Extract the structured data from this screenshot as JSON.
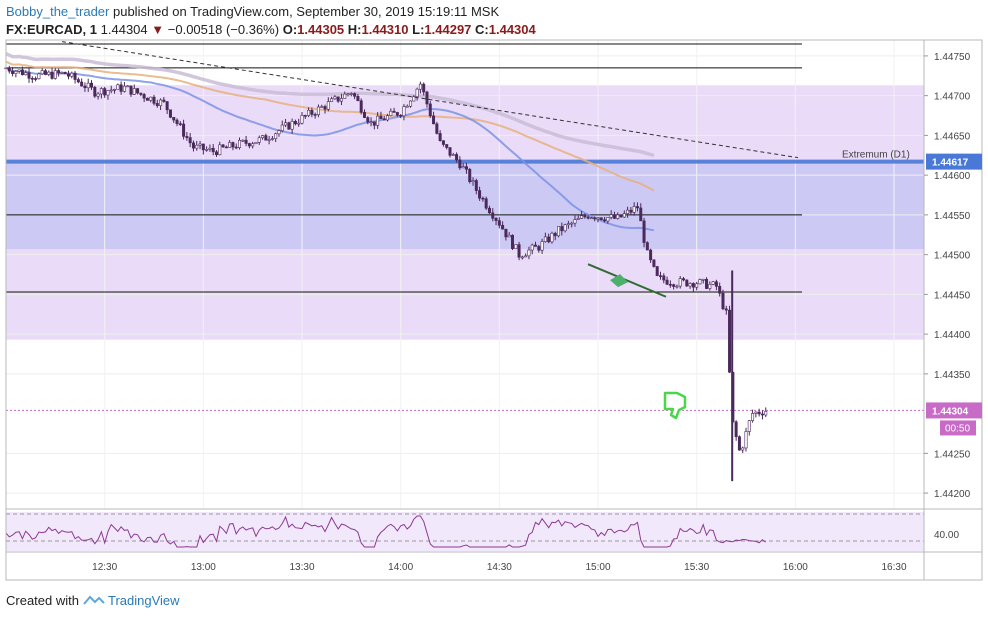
{
  "header": {
    "user": "Bobby_the_trader",
    "published": "published on TradingView.com, September 30, 2019 15:19:11 MSK",
    "symbol": "FX:EURCAD, 1",
    "price": "1.44304",
    "arrow": "▼",
    "change": "−0.00518 (−0.36%)",
    "o_label": "O:",
    "o": "1.44305",
    "h_label": "H:",
    "h": "1.44310",
    "l_label": "L:",
    "l": "1.44297",
    "c_label": "C:",
    "c": "1.44304"
  },
  "footer": {
    "created": "Created with",
    "brand": "TradingView"
  },
  "colors": {
    "candle": "#4a2a5a",
    "zone": "#e6d5f7",
    "blue_zone": "#c8c6f5",
    "level": "#4a78d6",
    "ma_blue": "#7b93e4",
    "ma_orange": "#e6b07c",
    "ma_grey": "#c9bcd6",
    "rsi": "#8a3a92",
    "price_tag": "#c76bc7",
    "thumb": "#4bd64b"
  },
  "chart_data": {
    "type": "candlestick",
    "x_ticks": [
      "12:30",
      "13:00",
      "13:30",
      "14:00",
      "14:30",
      "15:00",
      "15:30",
      "16:00",
      "16:30"
    ],
    "y_ticks": [
      "1.44750",
      "1.44700",
      "1.44650",
      "1.44600",
      "1.44550",
      "1.44500",
      "1.44450",
      "1.44400",
      "1.44350",
      "1.44250",
      "1.44200"
    ],
    "ylim": [
      1.4418,
      1.4477
    ],
    "horizontal_levels": [
      1.44765,
      1.44735,
      1.4455,
      1.44453
    ],
    "extremum": {
      "label": "Extremum (D1)",
      "value": "1.44617"
    },
    "current_price": {
      "value": "1.44304",
      "countdown": "00:50"
    },
    "zones": [
      {
        "from": 1.44393,
        "to": 1.44713,
        "color": "lavender"
      },
      {
        "from": 1.44507,
        "to": 1.44617,
        "color": "blue"
      }
    ],
    "rsi": {
      "level_label": "40.00",
      "upper_dashed": 60,
      "lower_dashed": 40
    },
    "price_path": [
      [
        12.0,
        1.44735
      ],
      [
        12.15,
        1.44725
      ],
      [
        12.3,
        1.44728
      ],
      [
        12.45,
        1.44705
      ],
      [
        12.6,
        1.4471
      ],
      [
        12.8,
        1.4469
      ],
      [
        12.95,
        1.44635
      ],
      [
        13.05,
        1.4463
      ],
      [
        13.2,
        1.4464
      ],
      [
        13.3,
        1.44645
      ],
      [
        13.45,
        1.44665
      ],
      [
        13.6,
        1.44685
      ],
      [
        13.75,
        1.44705
      ],
      [
        13.85,
        1.44665
      ],
      [
        14.0,
        1.4468
      ],
      [
        14.1,
        1.44715
      ],
      [
        14.2,
        1.4464
      ],
      [
        14.3,
        1.44615
      ],
      [
        14.4,
        1.44575
      ],
      [
        14.5,
        1.4454
      ],
      [
        14.6,
        1.445
      ],
      [
        14.7,
        1.4451
      ],
      [
        14.8,
        1.4453
      ],
      [
        14.95,
        1.4455
      ],
      [
        15.1,
        1.44545
      ],
      [
        15.2,
        1.4456
      ],
      [
        15.25,
        1.445
      ],
      [
        15.3,
        1.4447
      ],
      [
        15.4,
        1.44465
      ],
      [
        15.5,
        1.44465
      ],
      [
        15.6,
        1.4446
      ],
      [
        15.65,
        1.44425
      ],
      [
        15.68,
        1.4429
      ],
      [
        15.72,
        1.4425
      ],
      [
        15.78,
        1.443
      ],
      [
        15.85,
        1.44304
      ]
    ]
  }
}
